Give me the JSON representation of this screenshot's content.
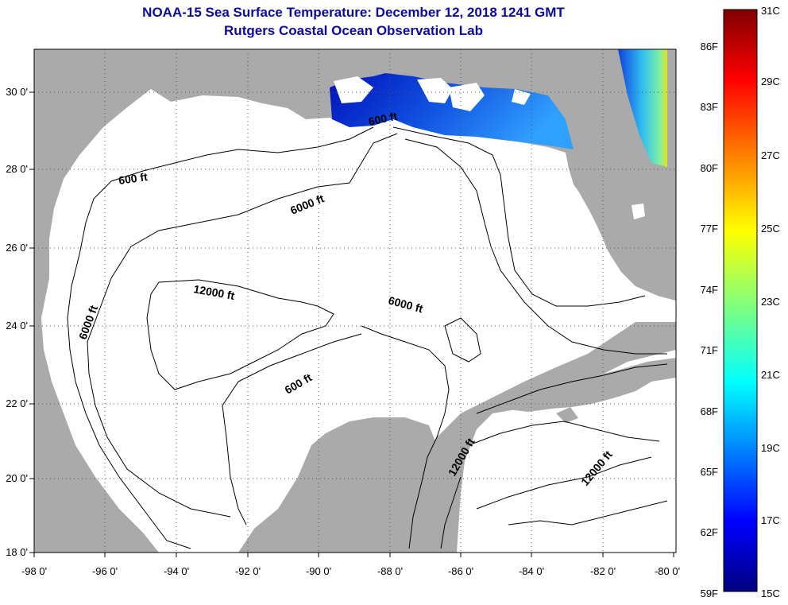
{
  "header": {
    "title_line1": "NOAA-15 Sea Surface Temperature:  December 12, 2018 1241 GMT",
    "title_line2": "Rutgers Coastal Ocean Observation Lab"
  },
  "map": {
    "lon_labels": [
      "-98 0'",
      "-96 0'",
      "-94 0'",
      "-92 0'",
      "-90 0'",
      "-88 0'",
      "-86 0'",
      "-84 0'",
      "-82 0'",
      "-80 0'"
    ],
    "lat_labels": [
      "30 0'",
      "28 0'",
      "26 0'",
      "24 0'",
      "22 0'",
      "20 0'",
      "18 0'"
    ],
    "contour_labels": {
      "ft600_north": "600 ft",
      "ft600_northwest": "600 ft",
      "ft6000_north": "6000 ft",
      "ft12000_center": "12000 ft",
      "ft6000_center": "6000 ft",
      "ft6000_west": "6000 ft",
      "ft600_center": "600 ft",
      "ft12000_caribbean_a": "12000 ft",
      "ft12000_caribbean_b": "12000 ft"
    },
    "colors": {
      "land": "#aaaaaa",
      "ocean_nodata": "#ffffff",
      "contour": "#000000",
      "grid": "#555555"
    }
  },
  "colorbar": {
    "f_labels": [
      "86F",
      "83F",
      "80F",
      "77F",
      "74F",
      "71F",
      "68F",
      "65F",
      "62F",
      "59F"
    ],
    "c_labels": [
      "31C",
      "29C",
      "27C",
      "25C",
      "23C",
      "21C",
      "19C",
      "17C",
      "15C"
    ],
    "range_c": [
      15,
      31
    ],
    "range_f": [
      59,
      88
    ]
  }
}
